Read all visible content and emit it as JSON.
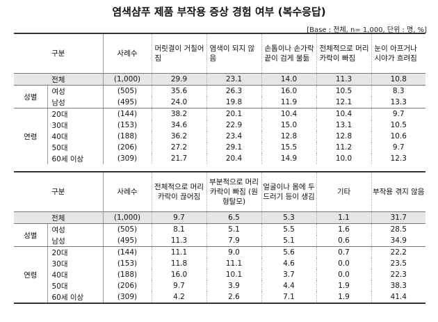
{
  "title": "염색샴푸 제품 부작용 증상 경험 여부 (복수응답)",
  "base": "[Base : 전체, n= 1,000, 단위 : 명, %]",
  "col_group": "구분",
  "col_count": "사례수",
  "table1": {
    "headers": [
      "머릿결이 거칠어짐",
      "염색이 되지 않음",
      "손톱이나 손가락 끝이 검게 물듦",
      "전체적으로 머리카락이 빠짐",
      "눈이 아프거나 시야가 흐려짐"
    ],
    "total": {
      "label": "전체",
      "n": "(1,000)",
      "values": [
        "29.9",
        "23.1",
        "14.0",
        "11.3",
        "10.8"
      ]
    },
    "groups": [
      {
        "name": "성별",
        "rows": [
          {
            "label": "여성",
            "n": "(505)",
            "values": [
              "35.6",
              "26.3",
              "16.0",
              "10.5",
              "8.3"
            ]
          },
          {
            "label": "남성",
            "n": "(495)",
            "values": [
              "24.0",
              "19.8",
              "11.9",
              "12.1",
              "13.3"
            ]
          }
        ]
      },
      {
        "name": "연령",
        "rows": [
          {
            "label": "20대",
            "n": "(144)",
            "values": [
              "38.2",
              "20.1",
              "10.4",
              "10.4",
              "9.7"
            ]
          },
          {
            "label": "30대",
            "n": "(153)",
            "values": [
              "34.6",
              "22.9",
              "15.0",
              "13.1",
              "10.5"
            ]
          },
          {
            "label": "40대",
            "n": "(188)",
            "values": [
              "36.2",
              "23.4",
              "12.8",
              "12.8",
              "10.6"
            ]
          },
          {
            "label": "50대",
            "n": "(206)",
            "values": [
              "27.2",
              "29.1",
              "15.5",
              "11.2",
              "9.7"
            ]
          },
          {
            "label": "60세 이상",
            "n": "(309)",
            "values": [
              "21.7",
              "20.4",
              "14.9",
              "10.0",
              "12.3"
            ]
          }
        ]
      }
    ]
  },
  "table2": {
    "headers": [
      "전체적으로 머리카락이 끊어짐",
      "부분적으로 머리카락이 빠짐 (원형탈모)",
      "얼굴이나 몸에 두드러기 등이 생김",
      "기타",
      "부작용 겪지 않음"
    ],
    "total": {
      "label": "전체",
      "n": "(1,000)",
      "values": [
        "9.7",
        "6.5",
        "5.3",
        "1.1",
        "31.7"
      ]
    },
    "groups": [
      {
        "name": "성별",
        "rows": [
          {
            "label": "여성",
            "n": "(505)",
            "values": [
              "8.1",
              "5.1",
              "5.5",
              "1.6",
              "28.5"
            ]
          },
          {
            "label": "남성",
            "n": "(495)",
            "values": [
              "11.3",
              "7.9",
              "5.1",
              "0.6",
              "34.9"
            ]
          }
        ]
      },
      {
        "name": "연령",
        "rows": [
          {
            "label": "20대",
            "n": "(144)",
            "values": [
              "11.1",
              "9.0",
              "5.6",
              "0.7",
              "22.2"
            ]
          },
          {
            "label": "30대",
            "n": "(153)",
            "values": [
              "11.8",
              "11.1",
              "4.6",
              "0.0",
              "23.5"
            ]
          },
          {
            "label": "40대",
            "n": "(188)",
            "values": [
              "16.0",
              "10.1",
              "3.7",
              "0.0",
              "22.3"
            ]
          },
          {
            "label": "50대",
            "n": "(206)",
            "values": [
              "9.7",
              "3.9",
              "4.4",
              "1.9",
              "38.3"
            ]
          },
          {
            "label": "60세 이상",
            "n": "(309)",
            "values": [
              "4.2",
              "2.6",
              "7.1",
              "1.9",
              "41.4"
            ]
          }
        ]
      }
    ]
  }
}
